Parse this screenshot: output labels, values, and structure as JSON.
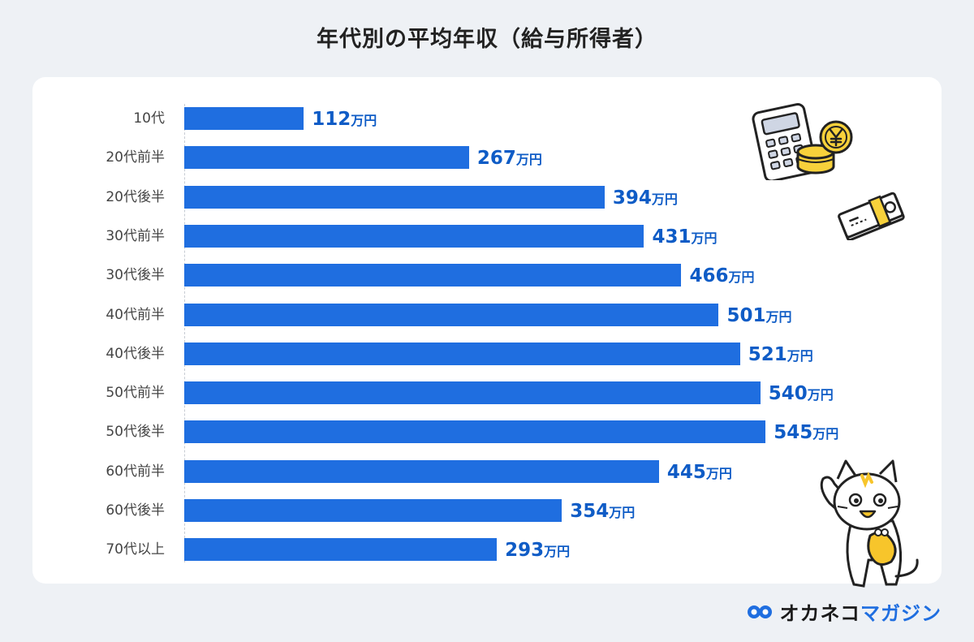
{
  "chart_data": {
    "type": "bar",
    "orientation": "horizontal",
    "title": "年代別の平均年収（給与所得者）",
    "categories": [
      "10代",
      "20代前半",
      "20代後半",
      "30代前半",
      "30代後半",
      "40代前半",
      "40代後半",
      "50代前半",
      "50代後半",
      "60代前半",
      "60代後半",
      "70代以上"
    ],
    "values": [
      112,
      267,
      394,
      431,
      466,
      501,
      521,
      540,
      545,
      445,
      354,
      293
    ],
    "value_unit": "万円",
    "xlim": [
      0,
      560
    ],
    "grid": false,
    "legend": "none",
    "bar_color": "#1f6ee0",
    "label_color": "#0f5cc6"
  },
  "brand": {
    "name": "オカネコ",
    "sub": "マガジン"
  },
  "icons": [
    "calculator-icon",
    "yen-coin-icon",
    "banknote-stack-icon",
    "cat-mascot-icon",
    "brand-logo-icon"
  ]
}
